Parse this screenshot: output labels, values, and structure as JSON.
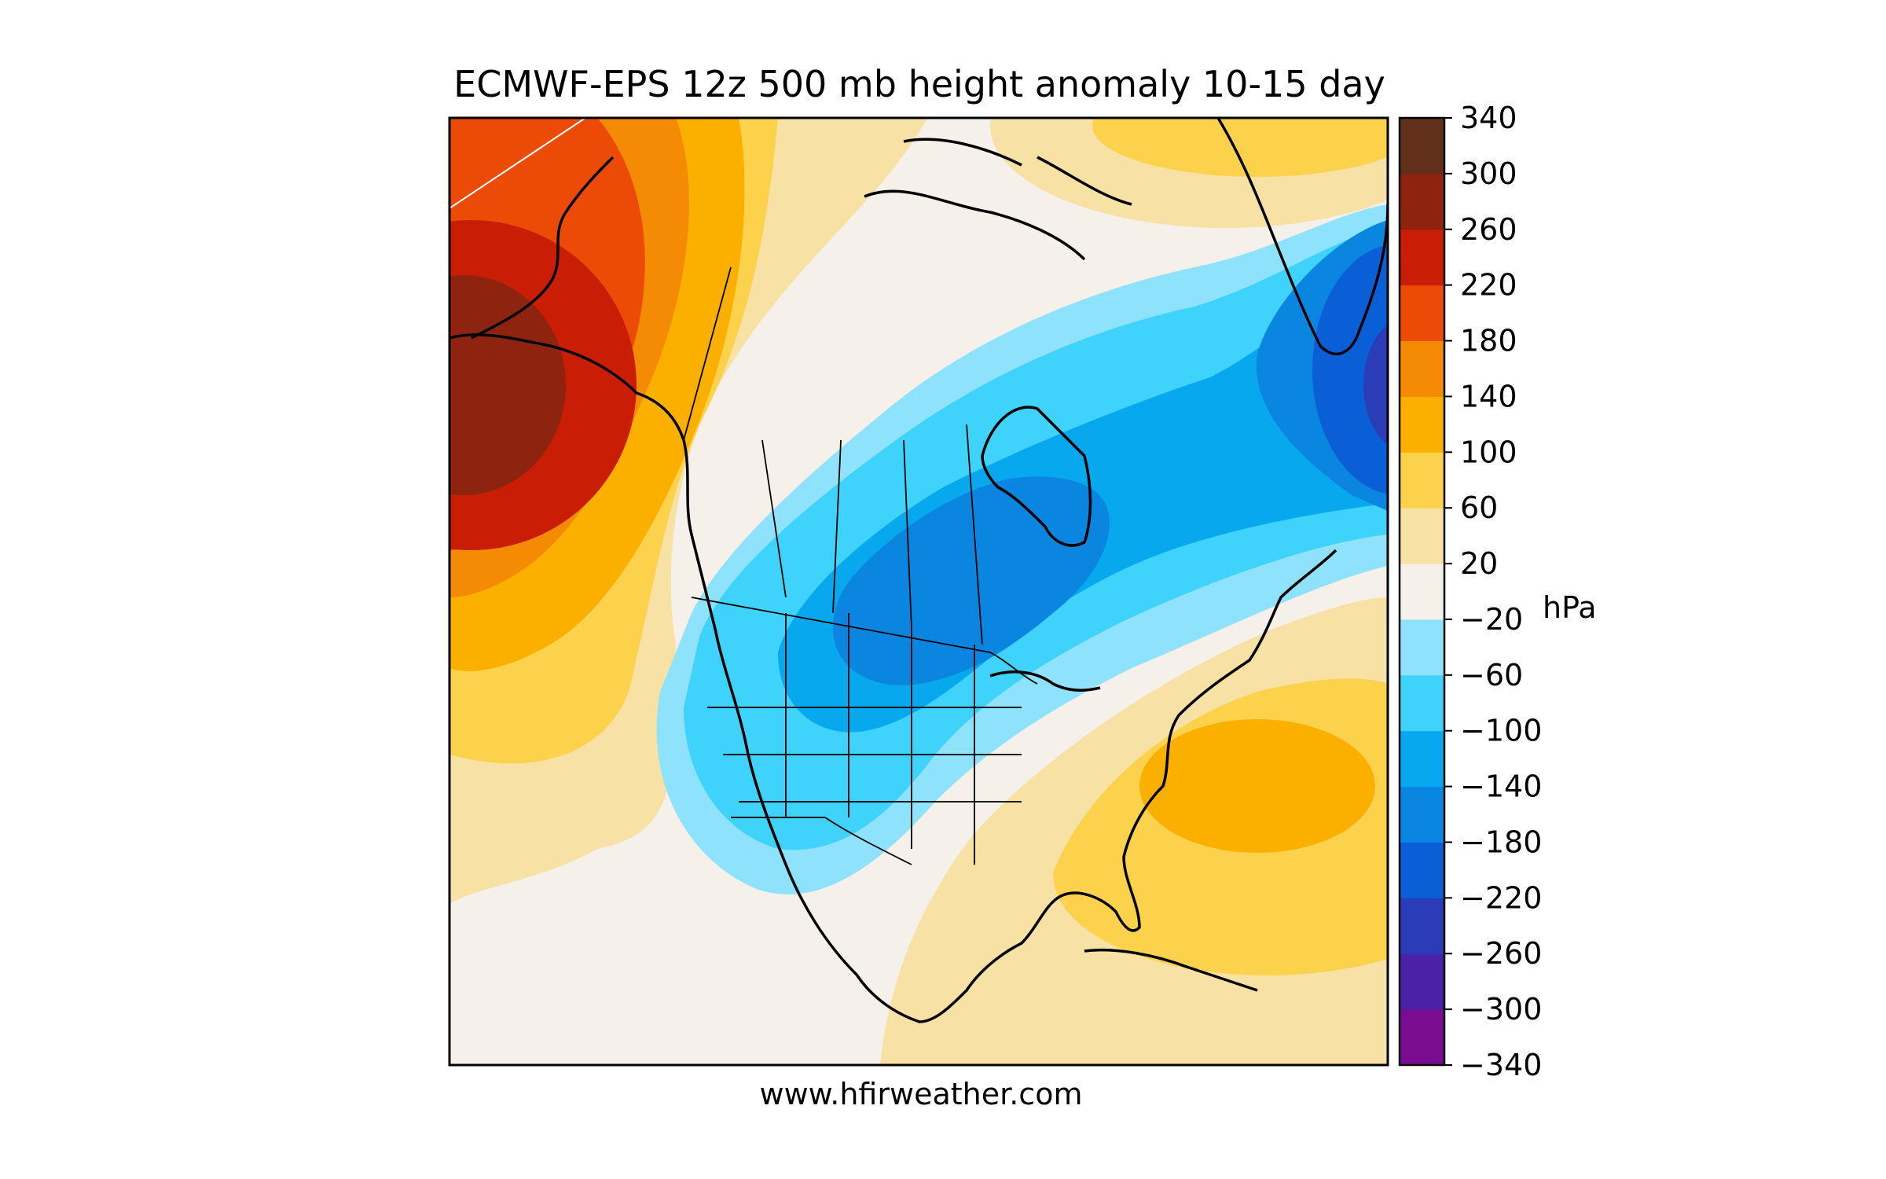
{
  "title": "ECMWF-EPS 12z 500 mb height anomaly 10-15 day",
  "footer": "www.hfirweather.com",
  "colorbar": {
    "unit": "hPa",
    "levels": [
      -340,
      -300,
      -260,
      -220,
      -180,
      -140,
      -100,
      -60,
      -20,
      20,
      60,
      100,
      140,
      180,
      220,
      260,
      300,
      340
    ],
    "tick_labels": [
      "−340",
      "−300",
      "−260",
      "−220",
      "−180",
      "−140",
      "−100",
      "−60",
      "−20",
      "20",
      "60",
      "100",
      "140",
      "180",
      "220",
      "260",
      "300",
      "340"
    ],
    "colors": [
      "#7a0c8f",
      "#4a22a8",
      "#2a3cb8",
      "#0a5ed6",
      "#0a86e0",
      "#07a8ee",
      "#3fd2fb",
      "#8fe2fc",
      "#f5f0ea",
      "#f8e1a4",
      "#fcd24d",
      "#fbb000",
      "#f58a04",
      "#ec4a07",
      "#c91e05",
      "#8e2410",
      "#62301a"
    ]
  },
  "map": {
    "colors": {
      "background": "#f5f0ea",
      "coast": "#000000",
      "borders": "#000000"
    }
  }
}
